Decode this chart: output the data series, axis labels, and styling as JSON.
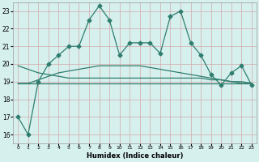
{
  "xlabel": "Humidex (Indice chaleur)",
  "x": [
    0,
    1,
    2,
    3,
    4,
    5,
    6,
    7,
    8,
    9,
    10,
    11,
    12,
    13,
    14,
    15,
    16,
    17,
    18,
    19,
    20,
    21,
    22,
    23
  ],
  "y_main": [
    17,
    16,
    19,
    20,
    20.5,
    21,
    21,
    22.5,
    23.3,
    22.5,
    20.5,
    21.2,
    21.2,
    21.2,
    20.6,
    22.7,
    23.0,
    21.2,
    20.5,
    19.4,
    18.8,
    19.5,
    19.9,
    18.8
  ],
  "y_trend1": [
    18.9,
    18.9,
    18.9,
    18.9,
    18.9,
    18.9,
    18.9,
    18.9,
    18.9,
    18.9,
    18.9,
    18.9,
    18.9,
    18.9,
    18.9,
    18.9,
    18.9,
    18.9,
    18.9,
    18.9,
    18.9,
    18.9,
    18.9,
    18.9
  ],
  "y_trend2": [
    19.9,
    19.7,
    19.5,
    19.4,
    19.3,
    19.2,
    19.2,
    19.2,
    19.2,
    19.2,
    19.2,
    19.2,
    19.2,
    19.2,
    19.2,
    19.2,
    19.2,
    19.2,
    19.2,
    19.1,
    19.1,
    19.0,
    19.0,
    18.9
  ],
  "y_trend3": [
    18.9,
    18.9,
    19.1,
    19.3,
    19.5,
    19.6,
    19.7,
    19.8,
    19.9,
    19.9,
    19.9,
    19.9,
    19.9,
    19.8,
    19.7,
    19.6,
    19.5,
    19.4,
    19.3,
    19.2,
    19.1,
    19.0,
    18.9,
    18.9
  ],
  "line_color": "#2e7d6e",
  "bg_color": "#d6f0ee",
  "grid_color": "#d4a8aa",
  "ylim": [
    15.5,
    23.5
  ],
  "yticks": [
    16,
    17,
    18,
    19,
    20,
    21,
    22,
    23
  ],
  "xlim": [
    -0.5,
    23.5
  ],
  "marker": "D",
  "marker_size": 2.5
}
